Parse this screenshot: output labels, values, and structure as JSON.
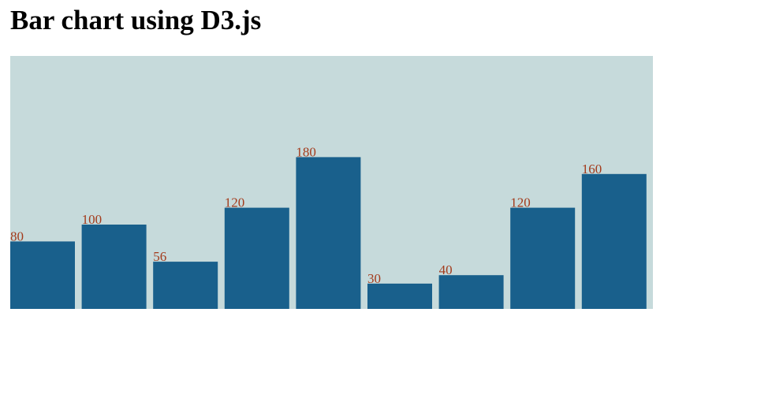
{
  "page": {
    "title": "Bar chart using D3.js"
  },
  "colors": {
    "background": "#c6dadb",
    "bar": "#19608c",
    "label": "#a33b1c"
  },
  "chart_data": {
    "type": "bar",
    "title": "",
    "xlabel": "",
    "ylabel": "",
    "values": [
      80,
      100,
      56,
      120,
      180,
      30,
      40,
      120,
      160
    ],
    "labels": [
      "80",
      "100",
      "56",
      "120",
      "180",
      "30",
      "40",
      "120",
      "160"
    ],
    "ylim": [
      0,
      300
    ],
    "grid": false,
    "legend": "none"
  }
}
